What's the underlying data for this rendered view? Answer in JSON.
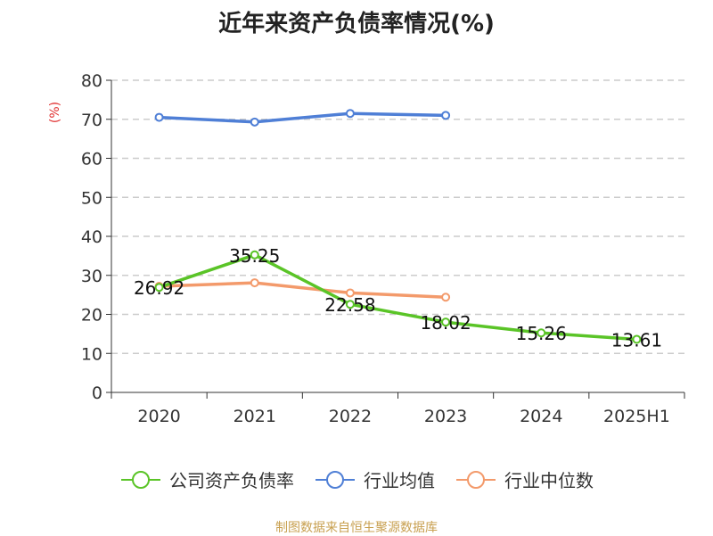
{
  "chart_data": {
    "type": "line",
    "title": "近年来资产负债率情况(%)",
    "ylabel": "(%)",
    "xlabel": "",
    "categories": [
      "2020",
      "2021",
      "2022",
      "2023",
      "2024",
      "2025H1"
    ],
    "ylim": [
      0,
      80
    ],
    "yticks": [
      0,
      10,
      20,
      30,
      40,
      50,
      60,
      70,
      80
    ],
    "grid": true,
    "legend_position": "bottom",
    "series": [
      {
        "name": "公司资产负债率",
        "color": "#5ac427",
        "values": [
          26.92,
          35.25,
          22.58,
          18.02,
          15.26,
          13.61
        ],
        "labels": [
          "26.92",
          "35.25",
          "22.58",
          "18.02",
          "15.26",
          "13.61"
        ]
      },
      {
        "name": "行业均值",
        "color": "#4f7fd6",
        "values": [
          70.5,
          69.3,
          71.5,
          71.0,
          null,
          null
        ]
      },
      {
        "name": "行业中位数",
        "color": "#f39a6b",
        "values": [
          27.2,
          28.1,
          25.5,
          24.4,
          null,
          null
        ]
      }
    ]
  },
  "source": "制图数据来自恒生聚源数据库"
}
